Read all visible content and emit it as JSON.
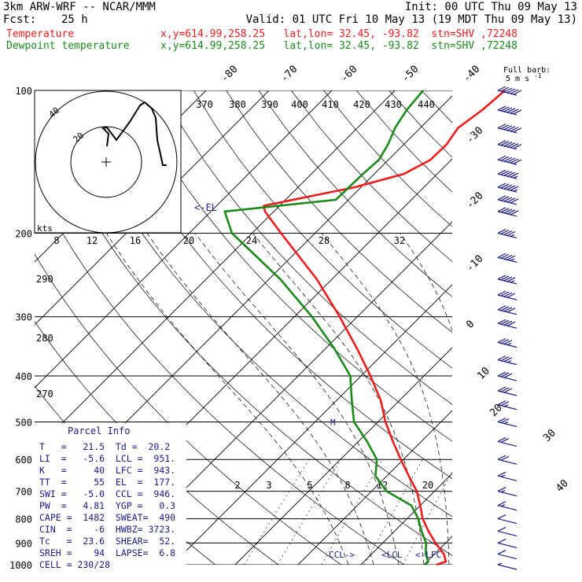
{
  "header": {
    "model": "3km ARW-WRF -- NCAR/MMM",
    "init": "Init: 00 UTC Thu 09 May 13",
    "fcst_label": "Fcst:",
    "fcst_value": "25 h",
    "valid": "Valid: 01 UTC Fri 10 May 13 (19 MDT Thu 09 May 13)",
    "temp_label": "Temperature",
    "dew_label": "Dewpoint temperature",
    "location_temp": "x,y=614.99,258.25   lat,lon= 32.45, -93.82  stn=SHV ,72248",
    "location_dew": "x,y=614.99,258.25   lat,lon= 32.45, -93.82  stn=SHV ,72248"
  },
  "colors": {
    "temperature": "#ee1c1c",
    "dewpoint": "#1b8a1b",
    "text": "#000000",
    "navy": "#1a1a8c"
  },
  "barb_legend": {
    "line1": "Full barb:",
    "line2": "5 m s",
    "unit_sup": "-1"
  },
  "hodograph": {
    "unit": "kts",
    "ring_labels": [
      "20",
      "40"
    ]
  },
  "isotherm_top_labels": [
    "-80",
    "-70",
    "-60",
    "-50",
    "-40"
  ],
  "isotherm_right_labels": [
    "-30",
    "-20",
    "-10",
    "0",
    "10",
    "20",
    "30",
    "40"
  ],
  "theta_top_labels": [
    "370",
    "380",
    "390",
    "400",
    "410",
    "420",
    "430",
    "440"
  ],
  "theta_left_labels": [
    "290",
    "280",
    "270"
  ],
  "mixing_ratio_labels": [
    "8",
    "12",
    "16",
    "20",
    "24",
    "28",
    "32"
  ],
  "mixing_ratio_low_labels": [
    "2",
    "3",
    "5",
    "8",
    "12",
    "20"
  ],
  "annotations": {
    "el": "<-EL",
    "ccl": "CCL->",
    "lcl": "<LCL",
    "lfc": "<-LFC",
    "m": "M"
  },
  "parcel": {
    "title": "Parcel Info",
    "rows": [
      "T   =   21.5  Td =  20.2",
      "LI  =   -5.6  LCL =  951.",
      "K   =     40  LFC =  943.",
      "TT  =     55  EL  =  177.",
      "SWI =   -5.0  CCL =  946.",
      "PW  =   4.81  YGP =   0.3",
      "CAPE =  1482  SWEAT=  490",
      "CIN  =    -6  HWBZ= 3723.",
      "Tc   =  23.6  SHEAR=  52.",
      "SREH =    94  LAPSE=  6.8",
      "CELL = 230/28"
    ]
  },
  "chart_data": {
    "type": "line",
    "title": "",
    "xlabel": "",
    "ylabel": "",
    "y_scale": "log-pressure",
    "ylim": [
      1000,
      100
    ],
    "y_ticks": [
      100,
      200,
      300,
      400,
      500,
      600,
      700,
      800,
      900,
      1000
    ],
    "series": [
      {
        "name": "Temperature",
        "points": [
          [
            1000,
            22
          ],
          [
            985,
            23
          ],
          [
            950,
            21.5
          ],
          [
            900,
            18.4
          ],
          [
            850,
            15.4
          ],
          [
            800,
            12.5
          ],
          [
            750,
            10
          ],
          [
            700,
            7.2
          ],
          [
            650,
            3.5
          ],
          [
            600,
            -0.4
          ],
          [
            550,
            -4.5
          ],
          [
            500,
            -8.8
          ],
          [
            450,
            -13
          ],
          [
            400,
            -18.5
          ],
          [
            350,
            -25
          ],
          [
            300,
            -32.8
          ],
          [
            250,
            -42.4
          ],
          [
            200,
            -55.4
          ],
          [
            180,
            -61.4
          ],
          [
            175,
            -62.5
          ],
          [
            160,
            -51
          ],
          [
            150,
            -45.3
          ],
          [
            140,
            -43.3
          ],
          [
            130,
            -43.2
          ],
          [
            120,
            -44
          ],
          [
            110,
            -43
          ],
          [
            100,
            -42.5
          ]
        ]
      },
      {
        "name": "Dewpoint temperature",
        "points": [
          [
            1000,
            20.2
          ],
          [
            985,
            20.2
          ],
          [
            950,
            18.6
          ],
          [
            900,
            16.9
          ],
          [
            850,
            14.3
          ],
          [
            800,
            11.8
          ],
          [
            750,
            8.6
          ],
          [
            700,
            2.4
          ],
          [
            650,
            -1.8
          ],
          [
            600,
            -4.2
          ],
          [
            550,
            -8.6
          ],
          [
            500,
            -13.8
          ],
          [
            450,
            -17.6
          ],
          [
            400,
            -21.7
          ],
          [
            350,
            -28.6
          ],
          [
            300,
            -37.2
          ],
          [
            250,
            -48.2
          ],
          [
            200,
            -63.2
          ],
          [
            180,
            -67.8
          ],
          [
            170,
            -52
          ],
          [
            150,
            -51.8
          ],
          [
            140,
            -51.5
          ],
          [
            130,
            -52.5
          ],
          [
            120,
            -54
          ],
          [
            110,
            -55
          ],
          [
            100,
            -55.5
          ]
        ]
      }
    ],
    "wind_barbs": [
      {
        "p": 100,
        "speed_kt": 60
      },
      {
        "p": 110,
        "speed_kt": 60
      },
      {
        "p": 120,
        "speed_kt": 60
      },
      {
        "p": 130,
        "speed_kt": 60
      },
      {
        "p": 140,
        "speed_kt": 60
      },
      {
        "p": 150,
        "speed_kt": 55
      },
      {
        "p": 160,
        "speed_kt": 55
      },
      {
        "p": 170,
        "speed_kt": 50
      },
      {
        "p": 180,
        "speed_kt": 50
      },
      {
        "p": 200,
        "speed_kt": 45
      },
      {
        "p": 225,
        "speed_kt": 45
      },
      {
        "p": 250,
        "speed_kt": 45
      },
      {
        "p": 270,
        "speed_kt": 40
      },
      {
        "p": 290,
        "speed_kt": 40
      },
      {
        "p": 310,
        "speed_kt": 40
      },
      {
        "p": 340,
        "speed_kt": 35
      },
      {
        "p": 370,
        "speed_kt": 35
      },
      {
        "p": 400,
        "speed_kt": 30
      },
      {
        "p": 430,
        "speed_kt": 30
      },
      {
        "p": 460,
        "speed_kt": 25
      },
      {
        "p": 500,
        "speed_kt": 25
      },
      {
        "p": 550,
        "speed_kt": 20
      },
      {
        "p": 600,
        "speed_kt": 20
      },
      {
        "p": 650,
        "speed_kt": 15
      },
      {
        "p": 700,
        "speed_kt": 15
      },
      {
        "p": 750,
        "speed_kt": 15
      },
      {
        "p": 800,
        "speed_kt": 10
      },
      {
        "p": 850,
        "speed_kt": 10
      },
      {
        "p": 900,
        "speed_kt": 10
      },
      {
        "p": 950,
        "speed_kt": 10
      },
      {
        "p": 1000,
        "speed_kt": 5
      }
    ]
  }
}
